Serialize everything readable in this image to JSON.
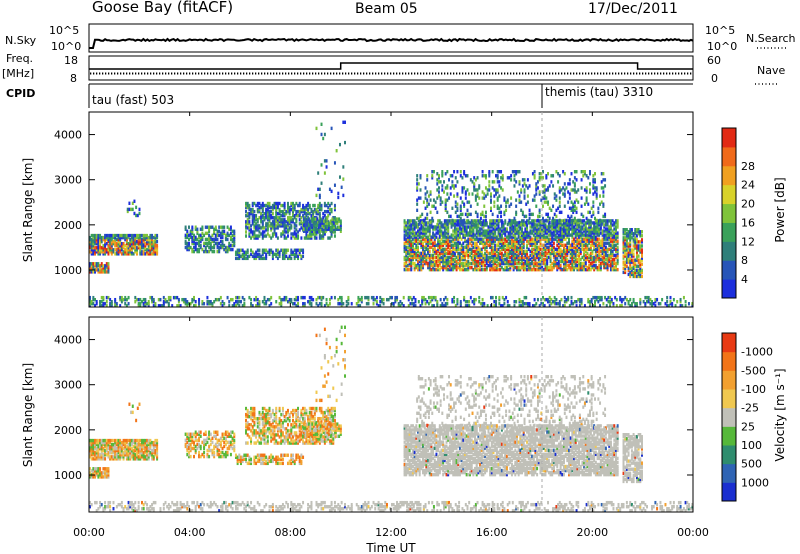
{
  "header": {
    "station": "Goose Bay (fitACF)",
    "beam": "Beam 05",
    "date": "17/Dec/2011"
  },
  "top_panels": {
    "nsky": {
      "label": "N.Sky",
      "ticks": [
        "10^5",
        "10^0"
      ],
      "right_label": "N.Search",
      "right_ticks": [
        "10^5",
        "10^0"
      ]
    },
    "freq": {
      "label1": "Freq.",
      "label2": "[MHz]",
      "ticks": [
        "18",
        "8"
      ],
      "right_label": "Nave",
      "right_ticks": [
        "60",
        "0"
      ]
    },
    "cpid": {
      "label": "CPID",
      "entries": [
        {
          "text": "tau (fast) 503",
          "start": 0
        },
        {
          "text": "themis (tau) 3310",
          "start": 18.0
        }
      ]
    }
  },
  "time_axis": {
    "label": "Time UT",
    "ticks": [
      "00:00",
      "04:00",
      "08:00",
      "12:00",
      "16:00",
      "20:00",
      "00:00"
    ]
  },
  "chart_data": [
    {
      "type": "heatmap",
      "name": "power",
      "ylabel": "Slant Range [km]",
      "xlim": [
        0,
        24
      ],
      "ylim": [
        180,
        4500
      ],
      "yticks": [
        1000,
        2000,
        3000,
        4000
      ],
      "colorbar": {
        "label": "Power [dB]",
        "ticks": [
          "4",
          "8",
          "12",
          "16",
          "20",
          "24",
          "28"
        ],
        "colors": [
          "#1c2fdc",
          "#2755b8",
          "#2f7f7a",
          "#3aa15a",
          "#7fc33a",
          "#d8d22a",
          "#f0a020",
          "#f06a1a",
          "#e22a14"
        ]
      },
      "dashed_marker_time": 18.0
    },
    {
      "type": "heatmap",
      "name": "velocity",
      "ylabel": "Slant Range [km]",
      "xlim": [
        0,
        24
      ],
      "ylim": [
        180,
        4500
      ],
      "yticks": [
        1000,
        2000,
        3000,
        4000
      ],
      "colorbar": {
        "label": "Velocity [m s⁻¹]",
        "ticks": [
          "1000",
          "500",
          "100",
          "25",
          "-25",
          "-100",
          "-500",
          "-1000"
        ],
        "colors": [
          "#1a2fd0",
          "#2f64b4",
          "#2f8d6e",
          "#56b83a",
          "#c0c0b8",
          "#f0c850",
          "#f2a030",
          "#f27418",
          "#e83a14"
        ]
      },
      "dashed_marker_time": 18.0
    }
  ]
}
